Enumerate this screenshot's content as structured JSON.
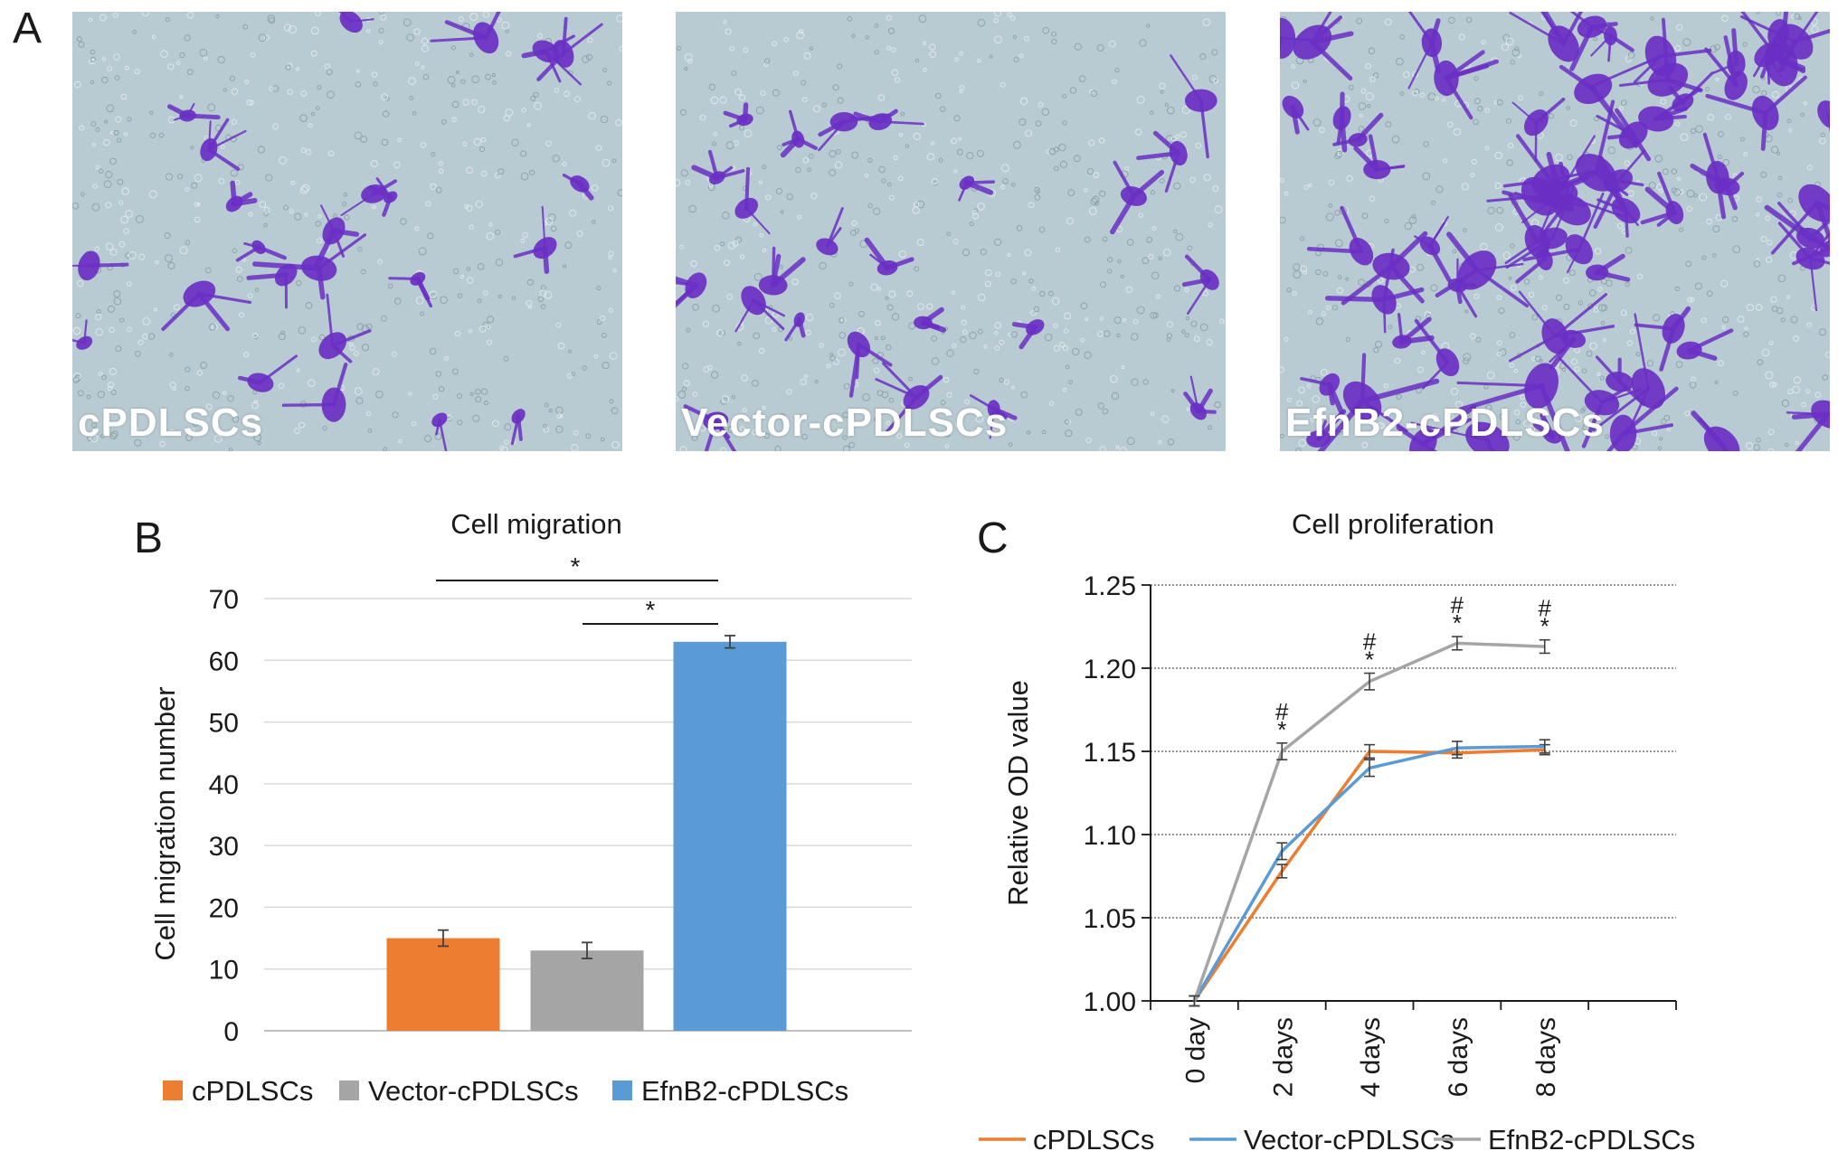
{
  "panel_a": {
    "letter": "A",
    "images": [
      {
        "label": "cPDLSCs",
        "density": "low"
      },
      {
        "label": "Vector-cPDLSCs",
        "density": "low"
      },
      {
        "label": "EfnB2-cPDLSCs",
        "density": "high"
      }
    ],
    "colors": {
      "background": "#b9cbd2",
      "stain": "#6a2fc4"
    }
  },
  "panel_b": {
    "letter": "B",
    "chart_data": {
      "type": "bar",
      "title": "Cell migration",
      "ylabel": "Cell migration number",
      "xlabel": "",
      "ylim": [
        0,
        70
      ],
      "yticks": [
        0,
        10,
        20,
        30,
        40,
        50,
        60,
        70
      ],
      "grid": true,
      "legend_position": "bottom",
      "series": [
        {
          "name": "cPDLSCs",
          "value": 15,
          "error": 1.3,
          "color": "#ed7d31"
        },
        {
          "name": "Vector-cPDLSCs",
          "value": 13,
          "error": 1.3,
          "color": "#a5a5a5"
        },
        {
          "name": "EfnB2-cPDLSCs",
          "value": 63,
          "error": 1.0,
          "color": "#5b9bd5"
        }
      ],
      "significance": [
        {
          "from": 0,
          "to": 2,
          "label": "*"
        },
        {
          "from": 1,
          "to": 2,
          "label": "*"
        }
      ]
    }
  },
  "panel_c": {
    "letter": "C",
    "chart_data": {
      "type": "line",
      "title": "Cell proliferation",
      "ylabel": "Relative OD value",
      "xlabel": "",
      "ylim": [
        1.0,
        1.25
      ],
      "yticks": [
        "1.00",
        "1.05",
        "1.10",
        "1.15",
        "1.20",
        "1.25"
      ],
      "categories": [
        "0 day",
        "2 days",
        "4 days",
        "6 days",
        "8 days"
      ],
      "grid": true,
      "legend_position": "bottom",
      "series": [
        {
          "name": "cPDLSCs",
          "color": "#ed7d31",
          "values": [
            1.0,
            1.078,
            1.15,
            1.149,
            1.151
          ],
          "errors": [
            0.003,
            0.004,
            0.004,
            0.003,
            0.003
          ]
        },
        {
          "name": "Vector-cPDLSCs",
          "color": "#5b9bd5",
          "values": [
            1.0,
            1.09,
            1.14,
            1.152,
            1.153
          ],
          "errors": [
            0.003,
            0.005,
            0.005,
            0.004,
            0.004
          ]
        },
        {
          "name": "EfnB2-cPDLSCs",
          "color": "#a5a5a5",
          "values": [
            1.0,
            1.15,
            1.192,
            1.215,
            1.213
          ],
          "errors": [
            0.003,
            0.005,
            0.005,
            0.004,
            0.004
          ]
        }
      ],
      "annotations": [
        {
          "category": "2 days",
          "marks": [
            "#",
            "*"
          ]
        },
        {
          "category": "4 days",
          "marks": [
            "#",
            "*"
          ]
        },
        {
          "category": "6 days",
          "marks": [
            "#",
            "*"
          ]
        },
        {
          "category": "8 days",
          "marks": [
            "#",
            "*"
          ]
        }
      ]
    }
  }
}
